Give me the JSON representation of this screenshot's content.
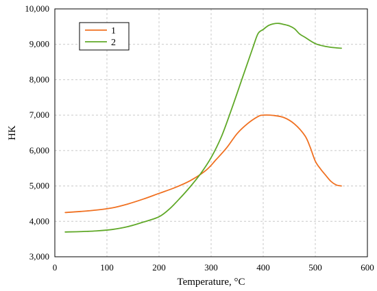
{
  "chart_data": {
    "type": "line",
    "title": "",
    "xlabel": "Temperature, °C",
    "ylabel": "HK",
    "xlim": [
      0,
      600
    ],
    "ylim": [
      3000,
      10000
    ],
    "x_ticks": [
      0,
      100,
      200,
      300,
      400,
      500,
      600
    ],
    "y_ticks": [
      3000,
      4000,
      5000,
      6000,
      7000,
      8000,
      9000,
      10000
    ],
    "x_tick_labels": [
      "0",
      "100",
      "200",
      "300",
      "400",
      "500",
      "600"
    ],
    "y_tick_labels": [
      "3,000",
      "4,000",
      "5,000",
      "6,000",
      "7,000",
      "8,000",
      "9,000",
      "10,000"
    ],
    "grid": true,
    "legend_position": "top-left",
    "series": [
      {
        "name": "1",
        "color": "#f07020",
        "x": [
          20,
          50,
          80,
          110,
          140,
          170,
          200,
          230,
          260,
          290,
          310,
          330,
          350,
          370,
          390,
          400,
          420,
          440,
          460,
          480,
          490,
          500,
          510,
          520,
          530,
          540,
          550
        ],
        "y": [
          4250,
          4280,
          4320,
          4380,
          4490,
          4630,
          4790,
          4950,
          5150,
          5440,
          5750,
          6080,
          6480,
          6760,
          6960,
          7000,
          6990,
          6930,
          6750,
          6420,
          6100,
          5700,
          5480,
          5300,
          5130,
          5030,
          5000
        ]
      },
      {
        "name": "2",
        "color": "#5fa827",
        "x": [
          20,
          50,
          80,
          110,
          140,
          170,
          200,
          220,
          240,
          260,
          280,
          300,
          320,
          340,
          360,
          380,
          390,
          400,
          410,
          420,
          430,
          440,
          450,
          460,
          470,
          480,
          500,
          520,
          540,
          550
        ],
        "y": [
          3700,
          3710,
          3730,
          3770,
          3850,
          3980,
          4130,
          4350,
          4650,
          4980,
          5350,
          5800,
          6400,
          7200,
          8050,
          8900,
          9300,
          9420,
          9530,
          9580,
          9590,
          9560,
          9520,
          9440,
          9290,
          9200,
          9020,
          8940,
          8900,
          8890
        ]
      }
    ]
  }
}
